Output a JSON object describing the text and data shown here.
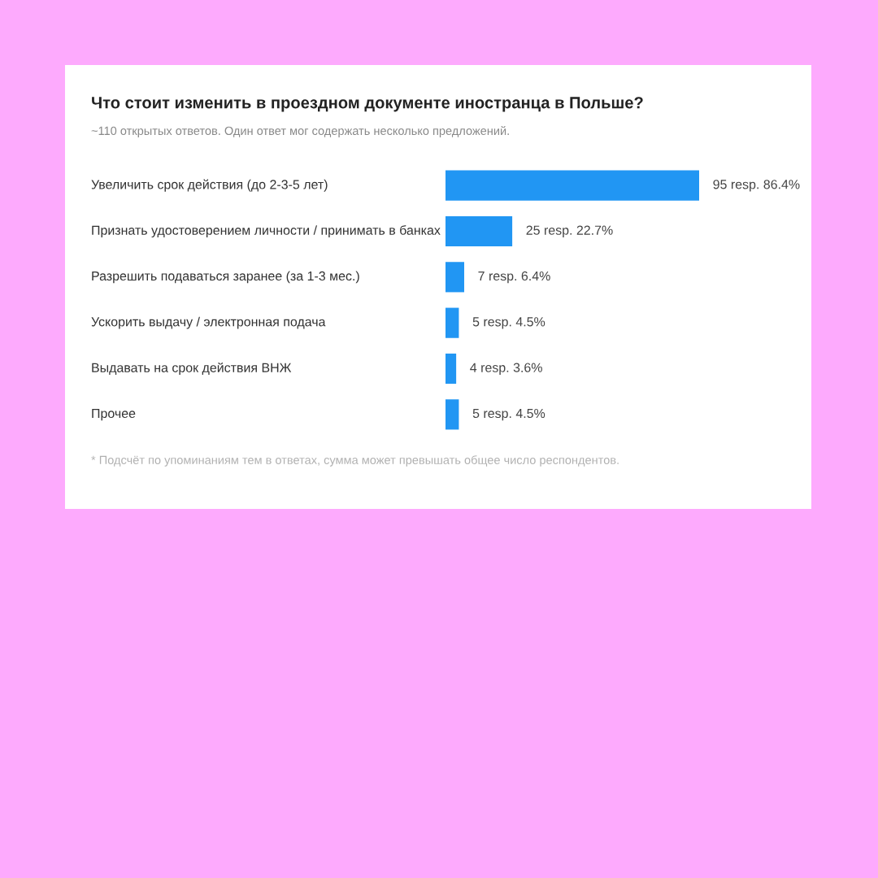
{
  "chart_data": {
    "type": "bar",
    "orientation": "horizontal",
    "title": "Что стоит изменить в проездном документе иностранца в Польше?",
    "subtitle": "~110 открытых ответов. Один ответ мог содержать несколько предложений.",
    "categories": [
      "Увеличить срок действия (до 2-3-5 лет)",
      "Признать удостоверением личности / принимать в банках",
      "Разрешить подаваться заранее (за 1-3 мес.)",
      "Ускорить выдачу / электронная подача",
      "Выдавать на срок действия ВНЖ",
      "Прочее"
    ],
    "values": [
      95,
      25,
      7,
      5,
      4,
      5
    ],
    "value_labels": [
      "95 resp. 86.4%",
      "25 resp. 22.7%",
      "7 resp. 6.4%",
      "5 resp. 4.5%",
      "4 resp. 3.6%",
      "5 resp. 4.5%"
    ],
    "color": "#2196f3",
    "annotations": [
      "* Подсчёт по упоминаниям тем в ответах, сумма может превышать общее число респондентов."
    ]
  }
}
